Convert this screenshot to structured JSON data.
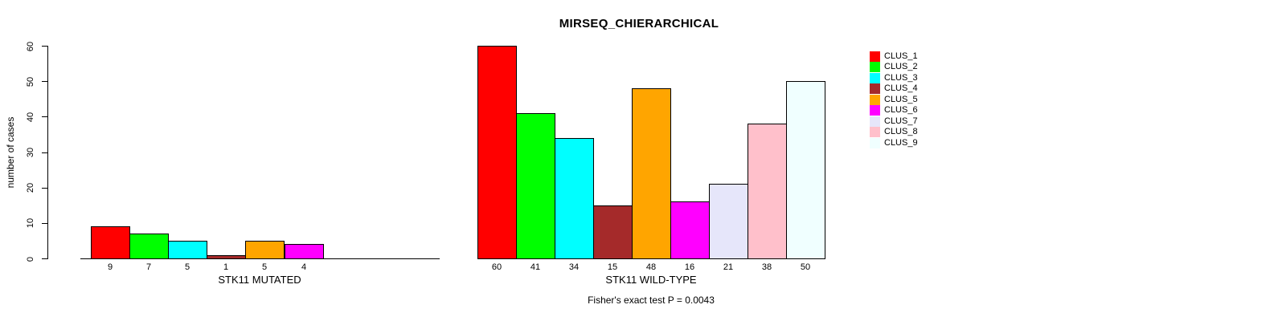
{
  "chart_data": {
    "type": "bar",
    "title": "MIRSEQ_CHIERARCHICAL",
    "ylabel": "number of cases",
    "ylim": [
      0,
      60
    ],
    "yticks": [
      0,
      10,
      20,
      30,
      40,
      50,
      60
    ],
    "grid": false,
    "legend_position": "right",
    "clusters": [
      {
        "label": "CLUS_1",
        "color": "#FF0000"
      },
      {
        "label": "CLUS_2",
        "color": "#00FF00"
      },
      {
        "label": "CLUS_3",
        "color": "#00FFFF"
      },
      {
        "label": "CLUS_4",
        "color": "#A52A2A"
      },
      {
        "label": "CLUS_5",
        "color": "#FFA500"
      },
      {
        "label": "CLUS_6",
        "color": "#FF00FF"
      },
      {
        "label": "CLUS_7",
        "color": "#E6E6FA"
      },
      {
        "label": "CLUS_8",
        "color": "#FFC0CB"
      },
      {
        "label": "CLUS_9",
        "color": "#F0FFFF"
      }
    ],
    "panels": [
      {
        "xlabel": "STK11 MUTATED",
        "values": [
          9,
          7,
          5,
          1,
          5,
          4,
          0,
          0,
          0
        ]
      },
      {
        "xlabel": "STK11 WILD-TYPE",
        "values": [
          60,
          41,
          34,
          15,
          48,
          16,
          21,
          38,
          50
        ]
      }
    ],
    "annotation": "Fisher's exact test P = 0.0043"
  }
}
